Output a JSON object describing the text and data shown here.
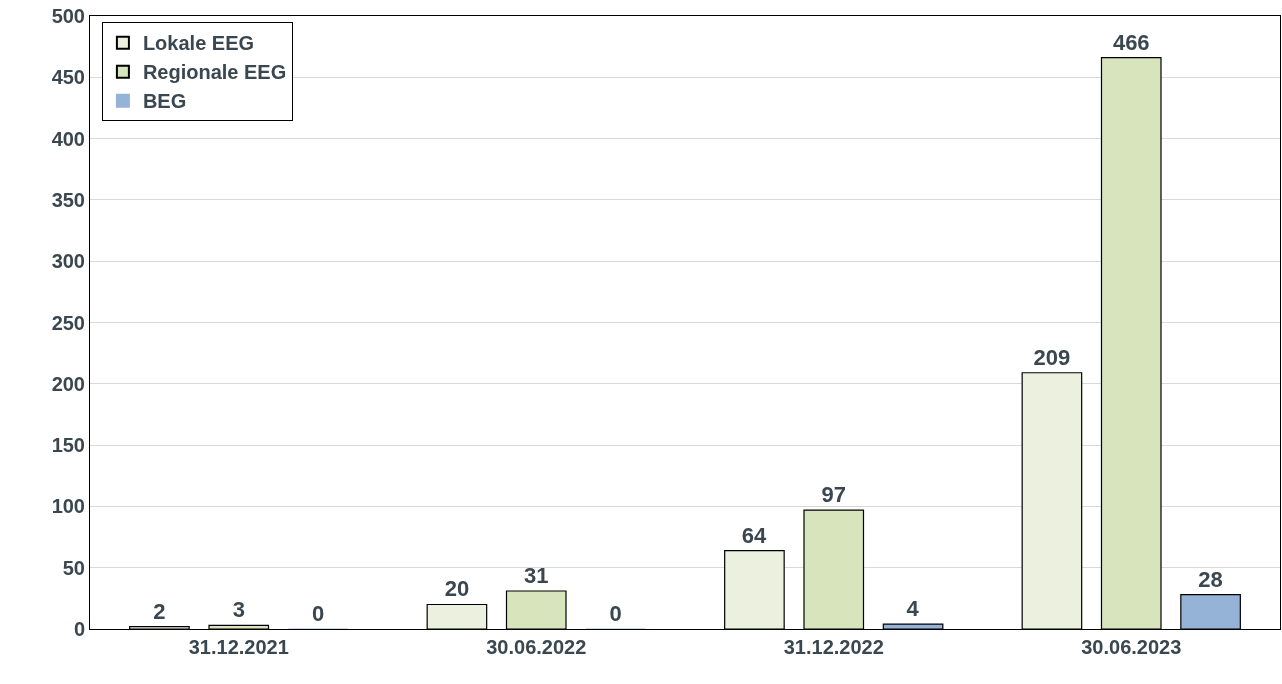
{
  "chart_data": {
    "type": "bar",
    "categories": [
      "31.12.2021",
      "30.06.2022",
      "31.12.2022",
      "30.06.2023"
    ],
    "series": [
      {
        "name": "Lokale EEG",
        "color": "#ebf1de",
        "values": [
          2,
          20,
          64,
          209
        ]
      },
      {
        "name": "Regionale EEG",
        "color": "#d7e4bc",
        "values": [
          3,
          31,
          97,
          466
        ]
      },
      {
        "name": "BEG",
        "color": "#95b3d7",
        "values": [
          0,
          0,
          4,
          28
        ]
      }
    ],
    "ylim": [
      0,
      500
    ],
    "yticks": [
      0,
      50,
      100,
      150,
      200,
      250,
      300,
      350,
      400,
      450,
      500
    ],
    "grid": "y",
    "legend": "top left",
    "data_labels": true
  }
}
